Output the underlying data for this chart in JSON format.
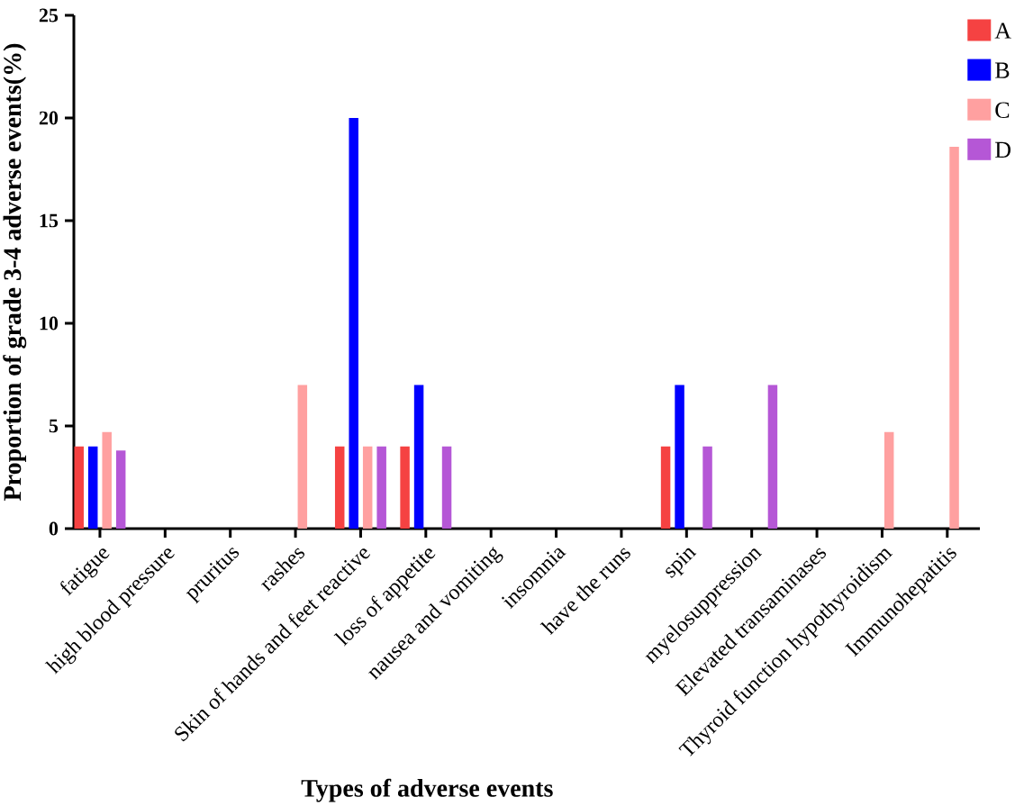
{
  "chart_data": {
    "type": "bar",
    "xlabel": "Types of adverse events",
    "ylabel": "Proportion of grade 3-4 adverse events(%)",
    "categories": [
      "fatigue",
      "high blood pressure",
      "pruritus",
      "rashes",
      "Skin of hands and feet reactive",
      "loss of appetite",
      "nausea and vomiting",
      "insomnia",
      "have the runs",
      "spin",
      "myelosuppression",
      "Elevated transaminases",
      "Thyroid function hypothyroidism",
      "Immunohepatitis"
    ],
    "series": [
      {
        "name": "A",
        "color": "#f54242",
        "values": [
          4,
          0,
          0,
          0,
          4,
          4,
          0,
          0,
          0,
          4,
          0,
          0,
          0,
          0
        ]
      },
      {
        "name": "B",
        "color": "#0000ff",
        "values": [
          4,
          0,
          0,
          0,
          20,
          7,
          0,
          0,
          0,
          7,
          0,
          0,
          0,
          0
        ]
      },
      {
        "name": "C",
        "color": "#ffa0a0",
        "values": [
          4.7,
          0,
          0,
          7,
          4,
          0,
          0,
          0,
          0,
          0,
          0,
          0,
          4.7,
          18.6
        ]
      },
      {
        "name": "D",
        "color": "#b557d6",
        "values": [
          3.8,
          0,
          0,
          0,
          4,
          4,
          0,
          0,
          0,
          4,
          7,
          0,
          0,
          0
        ]
      }
    ],
    "ylim": [
      0,
      25
    ],
    "yticks": [
      0,
      5,
      10,
      15,
      20,
      25
    ],
    "legend": "top right"
  }
}
